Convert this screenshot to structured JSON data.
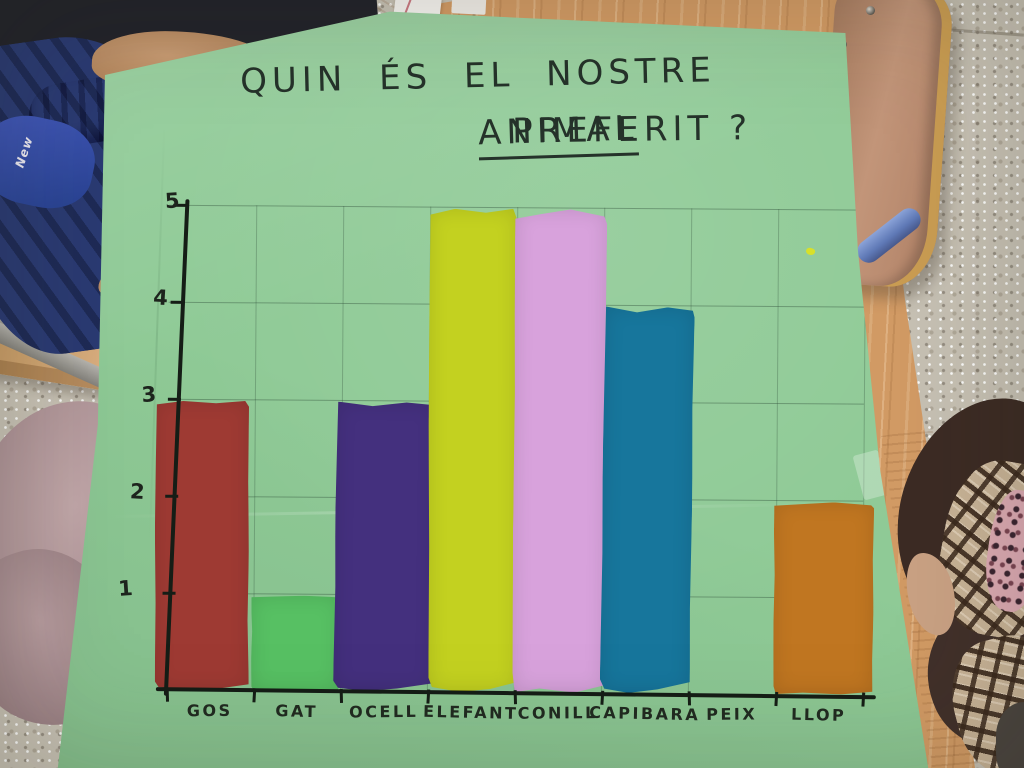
{
  "poster": {
    "title_line1": "QUIN ÉS EL NOSTRE",
    "title_line2_word1": "ANIMAL",
    "title_line2_rest": "PREFERIT ?"
  },
  "scene": {
    "jacket_text": "New"
  },
  "chart_data": {
    "type": "bar",
    "title": "QUIN ÉS EL NOSTRE ANIMAL PREFERIT?",
    "categories": [
      "GOS",
      "GAT",
      "OCELL",
      "ELEFANT",
      "CONILL",
      "CAPIBARA",
      "PEIX",
      "LLOP"
    ],
    "values": [
      3,
      1,
      3,
      5,
      5,
      4,
      0,
      2
    ],
    "bar_colors": [
      "#9e3a33",
      "#57c063",
      "#44307e",
      "#c3d120",
      "#d8a2dc",
      "#17769c",
      null,
      "#c07621"
    ],
    "y_ticks": [
      1,
      2,
      3,
      4,
      5
    ],
    "ylim": [
      0,
      5
    ],
    "grid": true,
    "legend_position": "none",
    "paper_color": "#8fca96",
    "axis_color": "#151d16",
    "gridline_color": "rgba(45,75,55,0.4)"
  }
}
